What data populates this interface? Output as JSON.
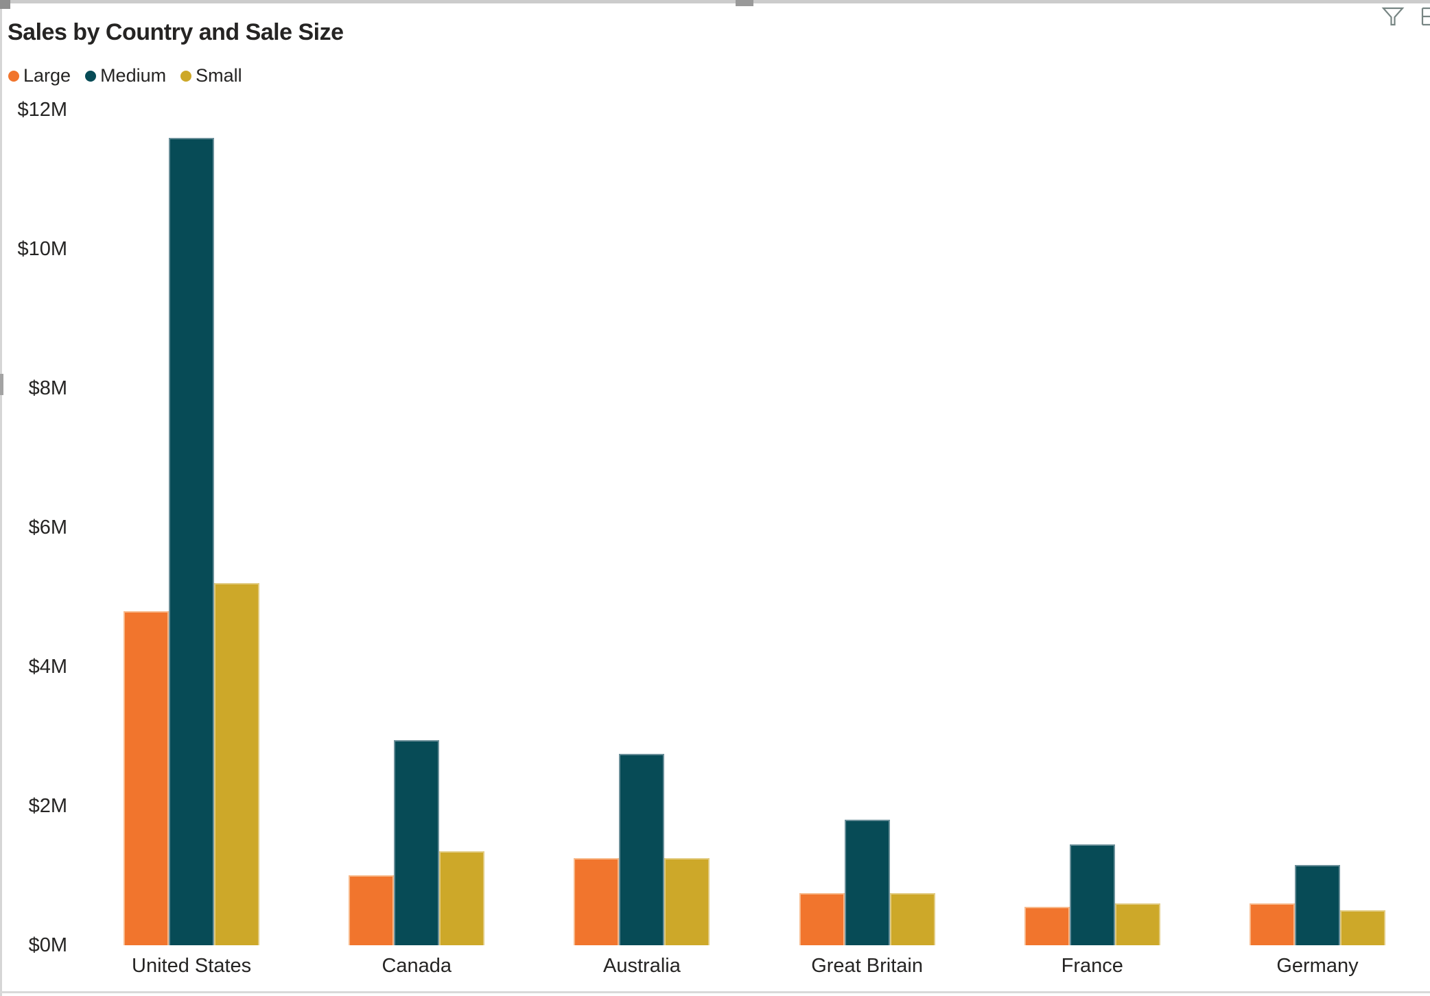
{
  "title": "Sales by Country and Sale Size",
  "toolbar": {
    "filter_icon": "filter-funnel",
    "partial_icon": "focus-mode (clipped at window edge)",
    "icon_color": "#778583"
  },
  "colors": {
    "background": "#ffffff",
    "text": "#252423",
    "large": "#F1752D",
    "medium": "#074B56",
    "small": "#CDA829",
    "scrollbar_track": "#cccccc",
    "scrollbar_thumb": "#999999"
  },
  "chart_data": {
    "type": "bar",
    "title": "Sales by Country and Sale Size",
    "categories": [
      "United States",
      "Canada",
      "Australia",
      "Great Britain",
      "France",
      "Germany"
    ],
    "series": [
      {
        "name": "Large",
        "color": "#F1752D",
        "border": "#F8BA8C",
        "values_millions": [
          4.8,
          1.0,
          1.25,
          0.75,
          0.55,
          0.6
        ]
      },
      {
        "name": "Medium",
        "color": "#074B56",
        "border": "#6A8F99",
        "values_millions": [
          11.6,
          2.95,
          2.75,
          1.8,
          1.45,
          1.15
        ]
      },
      {
        "name": "Small",
        "color": "#CDA829",
        "border": "#E2CC83",
        "values_millions": [
          5.2,
          1.35,
          1.25,
          0.75,
          0.6,
          0.5
        ]
      }
    ],
    "xlabel": "",
    "ylabel": "",
    "ylim": [
      0,
      12
    ],
    "y_tick_step": 2,
    "y_tick_labels": [
      "$0M",
      "$2M",
      "$4M",
      "$6M",
      "$8M",
      "$10M",
      "$12M"
    ],
    "value_unit": "$ millions",
    "grid": false,
    "legend_position": "top-left"
  }
}
